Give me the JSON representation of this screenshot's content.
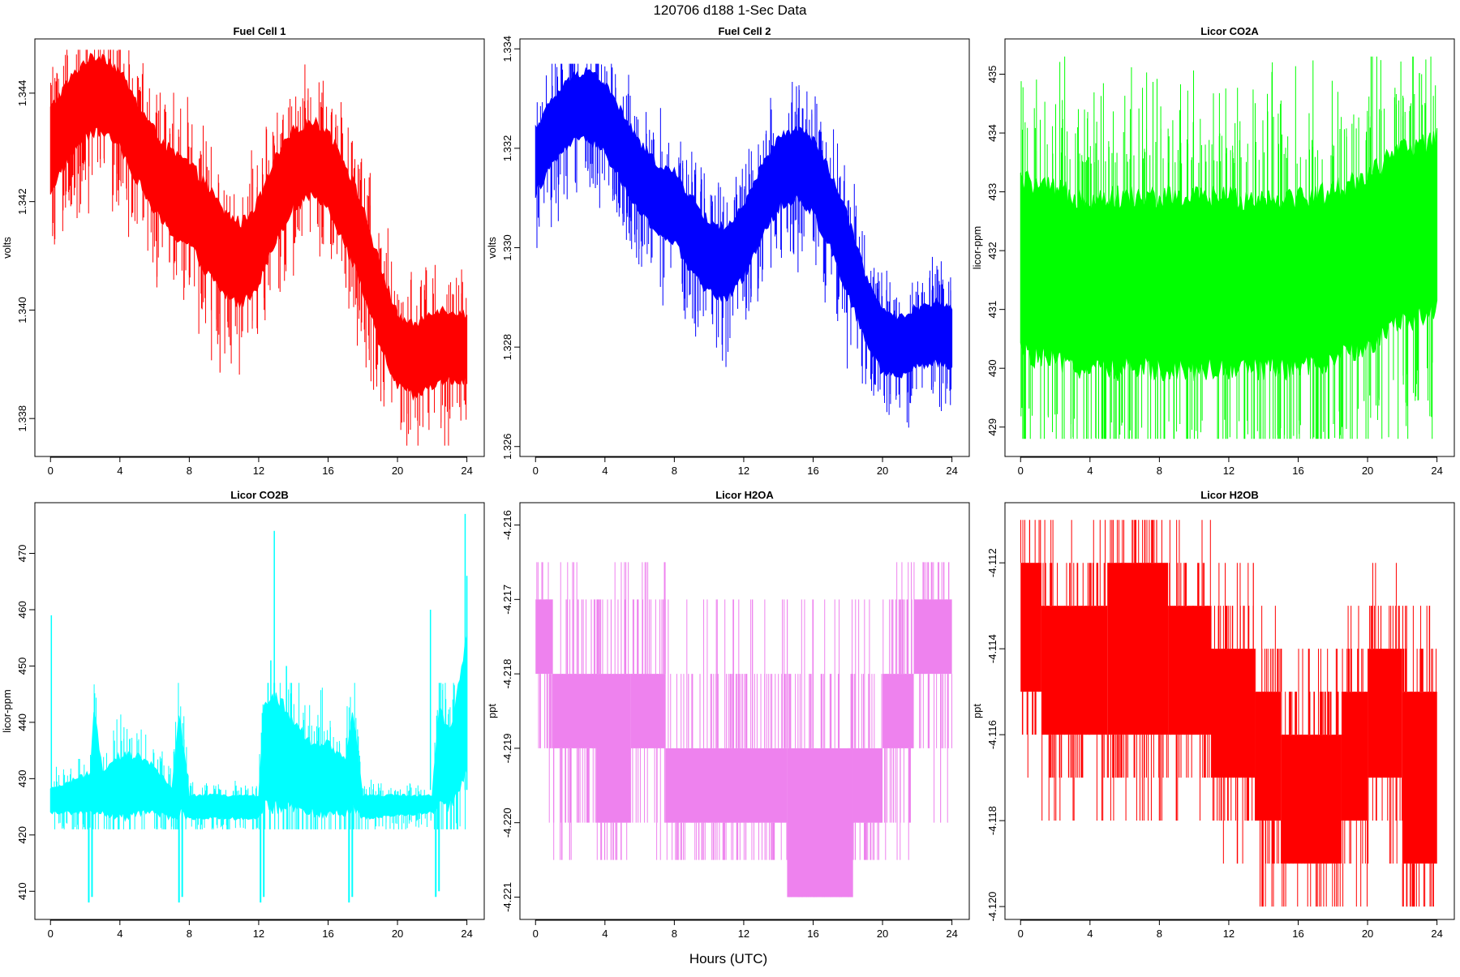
{
  "figure": {
    "title": "120706   d188   1-Sec Data",
    "xlabel": "Hours (UTC)"
  },
  "chart_data": [
    {
      "type": "line",
      "title": "Fuel Cell 1",
      "xlabel": "Hours (UTC)",
      "ylabel": "volts",
      "color": "#ff0000",
      "xlim": [
        -0.9,
        25
      ],
      "ylim": [
        1.3373,
        1.345
      ],
      "x_ticks": [
        0,
        4,
        8,
        12,
        16,
        20,
        24
      ],
      "y_ticks": [
        1.338,
        1.34,
        1.342,
        1.344
      ],
      "y_tick_labels": [
        "1.338",
        "1.340",
        "1.342",
        "1.344"
      ],
      "band": [
        {
          "x": 0,
          "lo": 1.3422,
          "hi": 1.3437
        },
        {
          "x": 1,
          "lo": 1.3428,
          "hi": 1.3442
        },
        {
          "x": 2,
          "lo": 1.3432,
          "hi": 1.3446
        },
        {
          "x": 3,
          "lo": 1.3433,
          "hi": 1.3447
        },
        {
          "x": 4,
          "lo": 1.343,
          "hi": 1.3444
        },
        {
          "x": 5,
          "lo": 1.3424,
          "hi": 1.3438
        },
        {
          "x": 6,
          "lo": 1.3418,
          "hi": 1.3433
        },
        {
          "x": 7,
          "lo": 1.3414,
          "hi": 1.3429
        },
        {
          "x": 8,
          "lo": 1.3412,
          "hi": 1.3427
        },
        {
          "x": 9,
          "lo": 1.3407,
          "hi": 1.3423
        },
        {
          "x": 10,
          "lo": 1.3403,
          "hi": 1.3418
        },
        {
          "x": 11,
          "lo": 1.3401,
          "hi": 1.3416
        },
        {
          "x": 12,
          "lo": 1.3405,
          "hi": 1.342
        },
        {
          "x": 13,
          "lo": 1.3413,
          "hi": 1.3428
        },
        {
          "x": 14,
          "lo": 1.3419,
          "hi": 1.3433
        },
        {
          "x": 15,
          "lo": 1.3421,
          "hi": 1.3435
        },
        {
          "x": 16,
          "lo": 1.3419,
          "hi": 1.3433
        },
        {
          "x": 17,
          "lo": 1.3412,
          "hi": 1.3427
        },
        {
          "x": 18,
          "lo": 1.3404,
          "hi": 1.3419
        },
        {
          "x": 19,
          "lo": 1.3393,
          "hi": 1.3408
        },
        {
          "x": 20,
          "lo": 1.3386,
          "hi": 1.3399
        },
        {
          "x": 21,
          "lo": 1.3384,
          "hi": 1.3397
        },
        {
          "x": 22,
          "lo": 1.3386,
          "hi": 1.34
        },
        {
          "x": 23,
          "lo": 1.3387,
          "hi": 1.34
        },
        {
          "x": 24,
          "lo": 1.3387,
          "hi": 1.3399
        }
      ],
      "spike_min": 1.3375,
      "spike_max": 1.3448
    },
    {
      "type": "line",
      "title": "Fuel Cell 2",
      "xlabel": "Hours (UTC)",
      "ylabel": "volts",
      "color": "#0000ff",
      "xlim": [
        -0.9,
        25
      ],
      "ylim": [
        1.3258,
        1.3342
      ],
      "x_ticks": [
        0,
        4,
        8,
        12,
        16,
        20,
        24
      ],
      "y_ticks": [
        1.326,
        1.328,
        1.33,
        1.332,
        1.334
      ],
      "y_tick_labels": [
        "1.326",
        "1.328",
        "1.330",
        "1.332",
        "1.334"
      ],
      "band": [
        {
          "x": 0,
          "lo": 1.3311,
          "hi": 1.3324
        },
        {
          "x": 1,
          "lo": 1.3317,
          "hi": 1.333
        },
        {
          "x": 2,
          "lo": 1.3321,
          "hi": 1.3334
        },
        {
          "x": 3,
          "lo": 1.3322,
          "hi": 1.3336
        },
        {
          "x": 4,
          "lo": 1.3319,
          "hi": 1.3333
        },
        {
          "x": 5,
          "lo": 1.3313,
          "hi": 1.3327
        },
        {
          "x": 6,
          "lo": 1.3307,
          "hi": 1.3321
        },
        {
          "x": 7,
          "lo": 1.3303,
          "hi": 1.3317
        },
        {
          "x": 8,
          "lo": 1.3301,
          "hi": 1.3315
        },
        {
          "x": 9,
          "lo": 1.3295,
          "hi": 1.331
        },
        {
          "x": 10,
          "lo": 1.3291,
          "hi": 1.3305
        },
        {
          "x": 11,
          "lo": 1.329,
          "hi": 1.3304
        },
        {
          "x": 12,
          "lo": 1.3294,
          "hi": 1.3308
        },
        {
          "x": 13,
          "lo": 1.3302,
          "hi": 1.3316
        },
        {
          "x": 14,
          "lo": 1.3308,
          "hi": 1.3322
        },
        {
          "x": 15,
          "lo": 1.331,
          "hi": 1.3324
        },
        {
          "x": 16,
          "lo": 1.3307,
          "hi": 1.3322
        },
        {
          "x": 17,
          "lo": 1.33,
          "hi": 1.3315
        },
        {
          "x": 18,
          "lo": 1.3291,
          "hi": 1.3306
        },
        {
          "x": 19,
          "lo": 1.3281,
          "hi": 1.3295
        },
        {
          "x": 20,
          "lo": 1.3275,
          "hi": 1.3287
        },
        {
          "x": 21,
          "lo": 1.3274,
          "hi": 1.3286
        },
        {
          "x": 22,
          "lo": 1.3276,
          "hi": 1.3288
        },
        {
          "x": 23,
          "lo": 1.3277,
          "hi": 1.3289
        },
        {
          "x": 24,
          "lo": 1.3276,
          "hi": 1.3288
        }
      ],
      "spike_min": 1.3262,
      "spike_max": 1.3337
    },
    {
      "type": "line",
      "title": "Licor CO2A",
      "xlabel": "Hours (UTC)",
      "ylabel": "licor-ppm",
      "color": "#00ff00",
      "xlim": [
        -0.9,
        25
      ],
      "ylim": [
        428.5,
        435.6
      ],
      "x_ticks": [
        0,
        4,
        8,
        12,
        16,
        20,
        24
      ],
      "y_ticks": [
        429,
        430,
        431,
        432,
        433,
        434,
        435
      ],
      "y_tick_labels": [
        "429",
        "430",
        "431",
        "432",
        "433",
        "434",
        "435"
      ],
      "band": [
        {
          "x": 0,
          "lo": 430.3,
          "hi": 433.2
        },
        {
          "x": 2,
          "lo": 430.1,
          "hi": 433.0
        },
        {
          "x": 4,
          "lo": 430.0,
          "hi": 432.9
        },
        {
          "x": 6,
          "lo": 430.0,
          "hi": 432.9
        },
        {
          "x": 8,
          "lo": 430.0,
          "hi": 432.9
        },
        {
          "x": 10,
          "lo": 430.0,
          "hi": 432.9
        },
        {
          "x": 12,
          "lo": 430.0,
          "hi": 432.9
        },
        {
          "x": 14,
          "lo": 430.0,
          "hi": 432.9
        },
        {
          "x": 16,
          "lo": 430.0,
          "hi": 432.9
        },
        {
          "x": 18,
          "lo": 430.1,
          "hi": 433.0
        },
        {
          "x": 20,
          "lo": 430.4,
          "hi": 433.3
        },
        {
          "x": 22,
          "lo": 430.8,
          "hi": 433.7
        },
        {
          "x": 24,
          "lo": 431.0,
          "hi": 433.9
        }
      ],
      "spike_min": 428.8,
      "spike_max": 435.3
    },
    {
      "type": "line",
      "title": "Licor CO2B",
      "xlabel": "Hours (UTC)",
      "ylabel": "licor-ppm",
      "color": "#00ffff",
      "xlim": [
        -0.9,
        25
      ],
      "ylim": [
        405,
        479
      ],
      "x_ticks": [
        0,
        4,
        8,
        12,
        16,
        20,
        24
      ],
      "y_ticks": [
        410,
        420,
        430,
        440,
        450,
        460,
        470
      ],
      "y_tick_labels": [
        "410",
        "420",
        "430",
        "440",
        "450",
        "460",
        "470"
      ],
      "band": [
        {
          "x": 0,
          "lo": 424,
          "hi": 428
        },
        {
          "x": 2.3,
          "lo": 424,
          "hi": 431
        },
        {
          "x": 2.5,
          "lo": 424,
          "hi": 442
        },
        {
          "x": 3,
          "lo": 424,
          "hi": 431
        },
        {
          "x": 4,
          "lo": 423,
          "hi": 434
        },
        {
          "x": 5,
          "lo": 424,
          "hi": 434
        },
        {
          "x": 6,
          "lo": 424,
          "hi": 432
        },
        {
          "x": 7,
          "lo": 423,
          "hi": 428
        },
        {
          "x": 7.4,
          "lo": 424,
          "hi": 442
        },
        {
          "x": 8,
          "lo": 423,
          "hi": 427
        },
        {
          "x": 12,
          "lo": 423,
          "hi": 427
        },
        {
          "x": 12.3,
          "lo": 425,
          "hi": 442
        },
        {
          "x": 13,
          "lo": 425,
          "hi": 445
        },
        {
          "x": 14,
          "lo": 425,
          "hi": 440
        },
        {
          "x": 15,
          "lo": 424,
          "hi": 436
        },
        {
          "x": 16,
          "lo": 424,
          "hi": 436
        },
        {
          "x": 17,
          "lo": 424,
          "hi": 433
        },
        {
          "x": 17.4,
          "lo": 425,
          "hi": 442
        },
        {
          "x": 18,
          "lo": 423,
          "hi": 427
        },
        {
          "x": 22,
          "lo": 424,
          "hi": 427
        },
        {
          "x": 22.4,
          "lo": 425,
          "hi": 443
        },
        {
          "x": 23,
          "lo": 425,
          "hi": 438
        },
        {
          "x": 23.5,
          "lo": 428,
          "hi": 446
        },
        {
          "x": 24,
          "lo": 432,
          "hi": 455
        }
      ],
      "dips": [
        {
          "x": 2.3,
          "value": 408
        },
        {
          "x": 7.5,
          "value": 408
        },
        {
          "x": 12.2,
          "value": 408
        },
        {
          "x": 17.3,
          "value": 408
        },
        {
          "x": 22.3,
          "value": 409
        }
      ],
      "peaks": [
        {
          "x": 0.05,
          "value": 459
        },
        {
          "x": 12.9,
          "value": 474
        },
        {
          "x": 12.7,
          "value": 451
        },
        {
          "x": 13.6,
          "value": 450
        },
        {
          "x": 21.9,
          "value": 460
        },
        {
          "x": 23.9,
          "value": 477
        },
        {
          "x": 24.0,
          "value": 466
        }
      ],
      "spike_min": 421,
      "spike_max": 447
    },
    {
      "type": "step",
      "title": "Licor H2OA",
      "xlabel": "Hours (UTC)",
      "ylabel": "ppt",
      "color": "#ee82ee",
      "xlim": [
        -0.9,
        25
      ],
      "ylim": [
        -4.2213,
        -4.2157
      ],
      "x_ticks": [
        0,
        4,
        8,
        12,
        16,
        20,
        24
      ],
      "y_ticks": [
        -4.221,
        -4.22,
        -4.219,
        -4.218,
        -4.217,
        -4.216
      ],
      "y_tick_labels": [
        "-4.221",
        "-4.220",
        "-4.219",
        "-4.218",
        "-4.217",
        "-4.216"
      ],
      "segments": [
        {
          "x0": 0.0,
          "x1": 1.0,
          "lo": -4.218,
          "hi": -4.217
        },
        {
          "x0": 1.0,
          "x1": 3.5,
          "lo": -4.219,
          "hi": -4.218
        },
        {
          "x0": 3.5,
          "x1": 5.5,
          "lo": -4.22,
          "hi": -4.218
        },
        {
          "x0": 5.5,
          "x1": 7.5,
          "lo": -4.219,
          "hi": -4.218
        },
        {
          "x0": 7.5,
          "x1": 14.5,
          "lo": -4.22,
          "hi": -4.219
        },
        {
          "x0": 14.5,
          "x1": 18.3,
          "lo": -4.221,
          "hi": -4.219
        },
        {
          "x0": 18.3,
          "x1": 20.0,
          "lo": -4.22,
          "hi": -4.219
        },
        {
          "x0": 20.0,
          "x1": 21.8,
          "lo": -4.219,
          "hi": -4.218
        },
        {
          "x0": 21.8,
          "x1": 24.0,
          "lo": -4.218,
          "hi": -4.217
        }
      ],
      "spike_min": -4.2205,
      "spike_max": -4.2165
    },
    {
      "type": "step",
      "title": "Licor H2OB",
      "xlabel": "Hours (UTC)",
      "ylabel": "ppt",
      "color": "#ff0000",
      "xlim": [
        -0.9,
        25
      ],
      "ylim": [
        -4.1203,
        -4.1106
      ],
      "x_ticks": [
        0,
        4,
        8,
        12,
        16,
        20,
        24
      ],
      "y_ticks": [
        -4.12,
        -4.118,
        -4.116,
        -4.114,
        -4.112
      ],
      "y_tick_labels": [
        "-4.120",
        "-4.118",
        "-4.116",
        "-4.114",
        "-4.112"
      ],
      "segments": [
        {
          "x0": 0.0,
          "x1": 1.2,
          "lo": -4.115,
          "hi": -4.112
        },
        {
          "x0": 1.2,
          "x1": 5.0,
          "lo": -4.116,
          "hi": -4.113
        },
        {
          "x0": 5.0,
          "x1": 8.5,
          "lo": -4.116,
          "hi": -4.112
        },
        {
          "x0": 8.5,
          "x1": 11.0,
          "lo": -4.116,
          "hi": -4.113
        },
        {
          "x0": 11.0,
          "x1": 13.5,
          "lo": -4.117,
          "hi": -4.114
        },
        {
          "x0": 13.5,
          "x1": 15.0,
          "lo": -4.118,
          "hi": -4.115
        },
        {
          "x0": 15.0,
          "x1": 18.5,
          "lo": -4.119,
          "hi": -4.116
        },
        {
          "x0": 18.5,
          "x1": 20.0,
          "lo": -4.118,
          "hi": -4.115
        },
        {
          "x0": 20.0,
          "x1": 22.0,
          "lo": -4.117,
          "hi": -4.114
        },
        {
          "x0": 22.0,
          "x1": 24.0,
          "lo": -4.119,
          "hi": -4.115
        }
      ],
      "spike_min": -4.12,
      "spike_max": -4.111
    }
  ]
}
